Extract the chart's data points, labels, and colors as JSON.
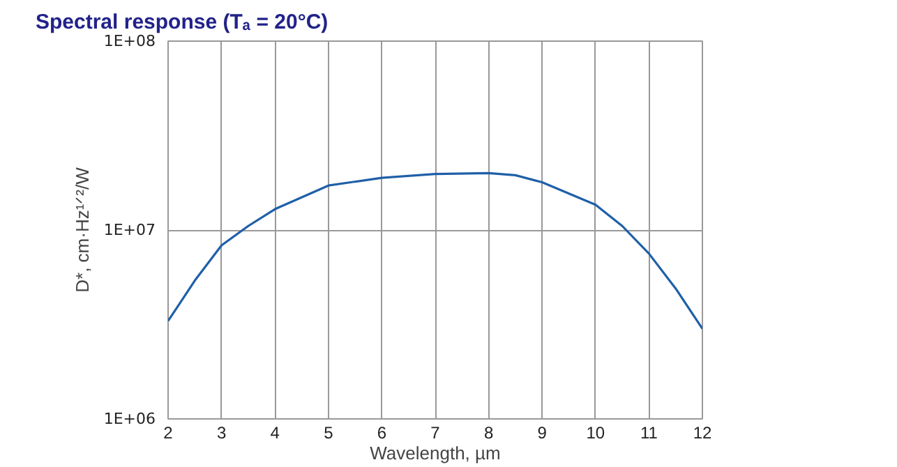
{
  "chart_data": {
    "type": "line",
    "title": "Spectral response (Tₐ = 20°C)",
    "xlabel": "Wavelength, µm",
    "ylabel": "D*, cm·Hz¹ᐟ²/W",
    "x": [
      2,
      2.5,
      3,
      3.5,
      4,
      5,
      6,
      7,
      8,
      8.5,
      9,
      10,
      10.5,
      11,
      11.5,
      12
    ],
    "series": [
      {
        "color": "#1f5fa8",
        "values": [
          3300000,
          5400000,
          8300000,
          10500000,
          12900000,
          17200000,
          18900000,
          19800000,
          20000000,
          19500000,
          17900000,
          13600000,
          10500000,
          7500000,
          4900000,
          3000000
        ]
      }
    ],
    "log": "y",
    "xlim": [
      2,
      12
    ],
    "xticks": [
      2,
      3,
      4,
      5,
      6,
      7,
      8,
      9,
      10,
      11,
      12
    ],
    "ylim": [
      1000000,
      100000000
    ],
    "yticks": [
      {
        "value": 1000000,
        "label": "1E+06"
      },
      {
        "value": 10000000,
        "label": "1E+07"
      },
      {
        "value": 100000000,
        "label": "1E+08"
      }
    ],
    "grid": true,
    "marker": "none",
    "line_style": "solid"
  }
}
